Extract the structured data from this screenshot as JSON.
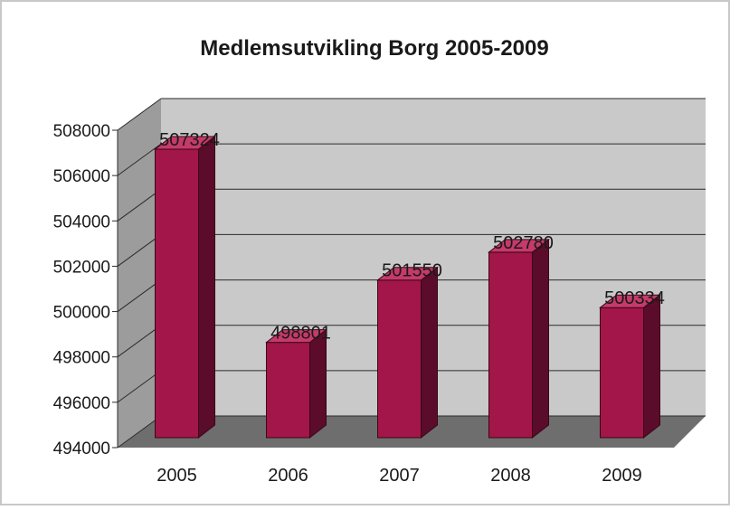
{
  "chart_data": {
    "type": "bar",
    "title": "Medlemsutvikling Borg 2005-2009",
    "categories": [
      "2005",
      "2006",
      "2007",
      "2008",
      "2009"
    ],
    "values": [
      507324,
      498801,
      501550,
      502780,
      500334
    ],
    "data_labels": [
      "507324",
      "498801",
      "501550",
      "502780",
      "500334"
    ],
    "y_ticks": [
      "508000",
      "506000",
      "504000",
      "502000",
      "500000",
      "498000",
      "496000",
      "494000"
    ],
    "ylim": [
      494000,
      508000
    ],
    "xlabel": "",
    "ylabel": "",
    "grid": true,
    "legend": "none",
    "style": "3d-column",
    "colors": {
      "bar_front": "#a3164a",
      "bar_side": "#5a0c2a",
      "bar_top": "#c53a6a",
      "back_wall": "#c9c9c9",
      "side_wall": "#9c9c9c",
      "floor": "#6e6e6e",
      "gridline": "#2b2b2b",
      "text": "#1a1a1a"
    }
  }
}
